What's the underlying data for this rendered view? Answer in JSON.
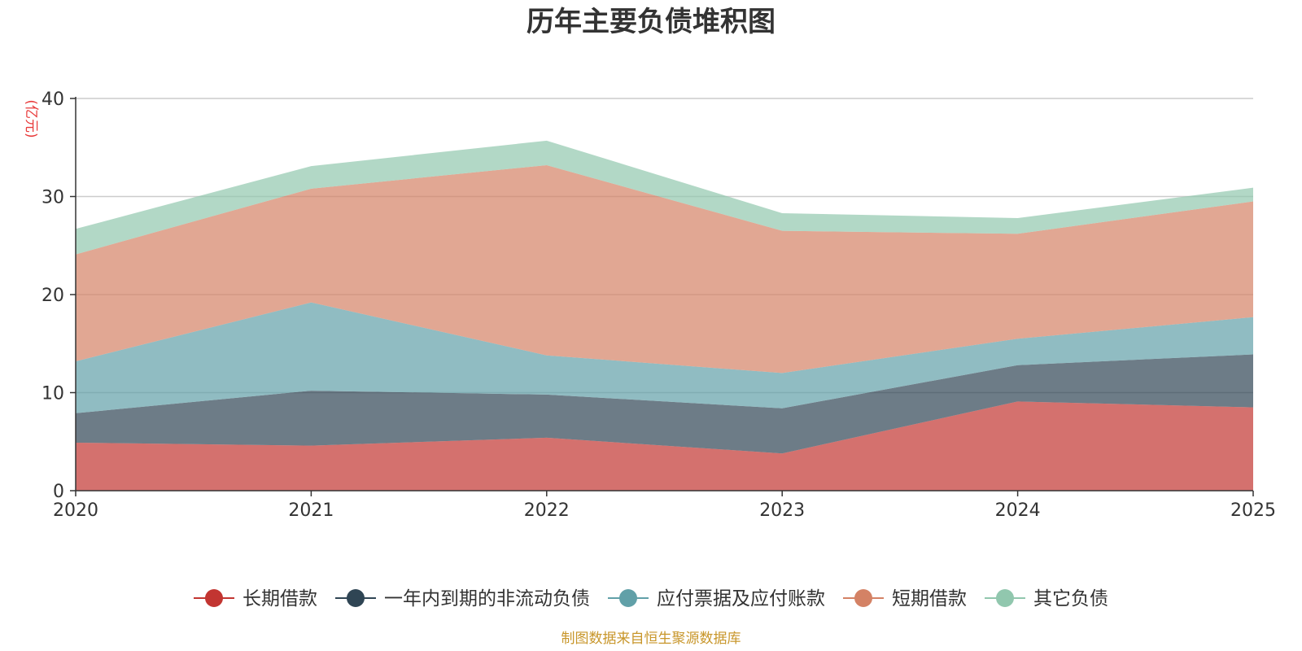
{
  "chart_data": {
    "type": "area",
    "stacked": true,
    "title": "历年主要负债堆积图",
    "ylabel": "(亿元)",
    "xlabel": "",
    "x": [
      "2020",
      "2021",
      "2022",
      "2023",
      "2024",
      "2025"
    ],
    "ylim": [
      0,
      40
    ],
    "yticks": [
      "0",
      "10",
      "20",
      "30",
      "40"
    ],
    "grid": true,
    "legend_position": "bottom",
    "series": [
      {
        "name": "长期借款",
        "color": "#c23531",
        "values": [
          4.9,
          4.6,
          5.4,
          3.8,
          9.1,
          8.5
        ]
      },
      {
        "name": "一年内到期的非流动负债",
        "color": "#2f4554",
        "values": [
          3.0,
          5.6,
          4.4,
          4.6,
          3.7,
          5.4
        ]
      },
      {
        "name": "应付票据及应付账款",
        "color": "#61a0a8",
        "values": [
          5.3,
          9.0,
          4.0,
          3.6,
          2.7,
          3.8
        ]
      },
      {
        "name": "短期借款",
        "color": "#d48265",
        "values": [
          10.9,
          11.6,
          19.4,
          14.5,
          10.7,
          11.8
        ]
      },
      {
        "name": "其它负债",
        "color": "#91c7ae",
        "values": [
          2.6,
          2.3,
          2.5,
          1.8,
          1.6,
          1.4
        ]
      }
    ],
    "source_note": "制图数据来自恒生聚源数据库"
  }
}
